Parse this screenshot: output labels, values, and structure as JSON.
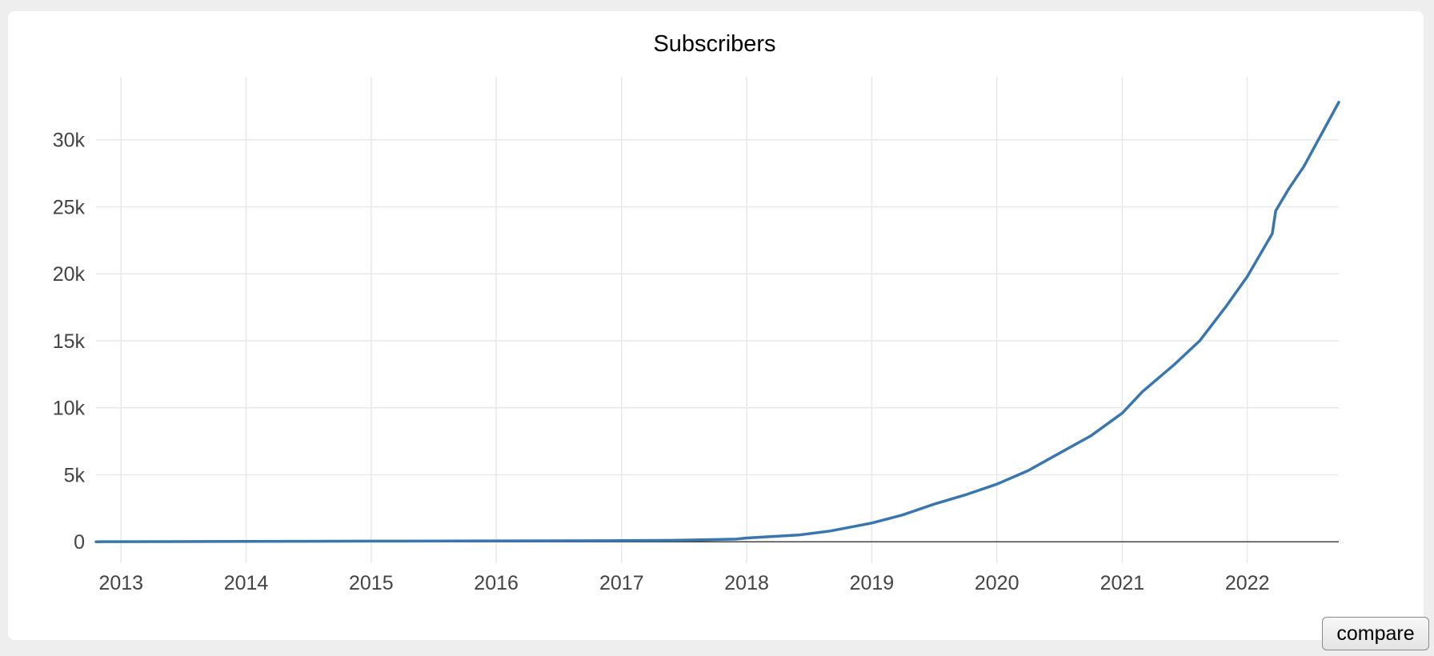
{
  "compare_label": "compare",
  "chart_data": {
    "type": "line",
    "title": "Subscribers",
    "xlabel": "",
    "ylabel": "",
    "x_ticks": [
      "2013",
      "2014",
      "2015",
      "2016",
      "2017",
      "2018",
      "2019",
      "2020",
      "2021",
      "2022"
    ],
    "y_ticks": [
      {
        "value": 0,
        "label": "0"
      },
      {
        "value": 5000,
        "label": "5k"
      },
      {
        "value": 10000,
        "label": "10k"
      },
      {
        "value": 15000,
        "label": "15k"
      },
      {
        "value": 20000,
        "label": "20k"
      },
      {
        "value": 25000,
        "label": "25k"
      },
      {
        "value": 30000,
        "label": "30k"
      }
    ],
    "xlim": [
      "2012-10-20",
      "2022-09-25"
    ],
    "ylim": [
      -1600,
      34700
    ],
    "grid": true,
    "line_color": "#3a76ae",
    "series": [
      {
        "name": "",
        "points": [
          [
            "2012-10-20",
            0
          ],
          [
            "2013-06-01",
            10
          ],
          [
            "2014-01-01",
            25
          ],
          [
            "2015-01-01",
            45
          ],
          [
            "2016-01-01",
            65
          ],
          [
            "2017-01-01",
            85
          ],
          [
            "2017-06-01",
            110
          ],
          [
            "2017-12-01",
            200
          ],
          [
            "2018-01-01",
            280
          ],
          [
            "2018-06-01",
            500
          ],
          [
            "2018-09-01",
            800
          ],
          [
            "2019-01-01",
            1400
          ],
          [
            "2019-04-01",
            2000
          ],
          [
            "2019-07-01",
            2800
          ],
          [
            "2019-10-01",
            3500
          ],
          [
            "2020-01-01",
            4300
          ],
          [
            "2020-04-01",
            5300
          ],
          [
            "2020-07-01",
            6600
          ],
          [
            "2020-10-01",
            7900
          ],
          [
            "2021-01-01",
            9600
          ],
          [
            "2021-03-01",
            11200
          ],
          [
            "2021-06-01",
            13200
          ],
          [
            "2021-08-15",
            15000
          ],
          [
            "2021-11-01",
            17600
          ],
          [
            "2022-01-01",
            19800
          ],
          [
            "2022-03-15",
            23000
          ],
          [
            "2022-03-25",
            24700
          ],
          [
            "2022-05-01",
            26300
          ],
          [
            "2022-06-15",
            28000
          ],
          [
            "2022-09-25",
            32800
          ]
        ]
      }
    ]
  }
}
